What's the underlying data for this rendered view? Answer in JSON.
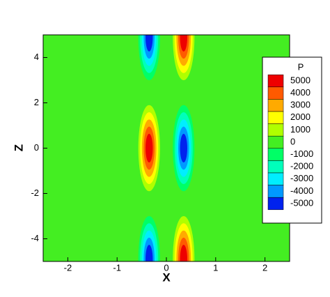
{
  "chart_data": {
    "type": "contour",
    "xlabel": "X",
    "ylabel": "Z",
    "xlim": [
      -2.5,
      2.5
    ],
    "ylim": [
      -5,
      5
    ],
    "xticks": [
      -2,
      -1,
      0,
      1,
      2
    ],
    "yticks": [
      -4,
      -2,
      0,
      2,
      4
    ],
    "legend_title": "P",
    "levels": [
      5000,
      4000,
      3000,
      2000,
      1000,
      0,
      -1000,
      -2000,
      -3000,
      -4000,
      -5000
    ],
    "level_colors": [
      "#ee0000",
      "#ff5a00",
      "#ffaa00",
      "#ffff00",
      "#b0ff00",
      "#44ee22",
      "#00ff66",
      "#00ffbb",
      "#00eeff",
      "#0099ff",
      "#0022ee"
    ],
    "peaks": {
      "x": [
        -0.35,
        0.35,
        -0.35,
        0.35,
        -0.35,
        0.35
      ],
      "y": [
        0,
        0,
        4.9,
        4.9,
        -4.9,
        -4.9
      ],
      "values": [
        6000,
        -6000,
        -6000,
        6000,
        -6000,
        6000
      ]
    }
  }
}
